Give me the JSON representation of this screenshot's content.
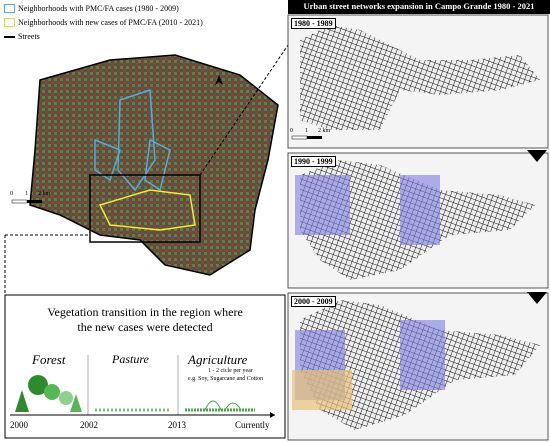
{
  "legend": {
    "items": [
      "Neighborhoods with PMC/FA cases (1980 - 2009)",
      "Neighborhoods with new cases of PMC/FA (2010 - 2021)",
      "Streets"
    ]
  },
  "main_map": {
    "scale_labels": [
      "0",
      "1",
      "2 km"
    ]
  },
  "panels": {
    "title": "Urban street networks expansion in Campo Grande 1980 - 2021",
    "labels": [
      "1980 - 1989",
      "1990 - 1999",
      "2000 - 2009"
    ],
    "scale_labels": [
      "0",
      "1",
      "2 km"
    ]
  },
  "vegetation": {
    "title": "Vegetation transition in the region where the new cases were detected",
    "stages": [
      "Forest",
      "Pasture",
      "Agriculture"
    ],
    "agriculture_note": [
      "1 - 2 cicle per year",
      "e.g. Soy, Sugarcane and Cotton"
    ],
    "timeline": [
      "2000",
      "2002",
      "2013",
      "Currently"
    ]
  }
}
